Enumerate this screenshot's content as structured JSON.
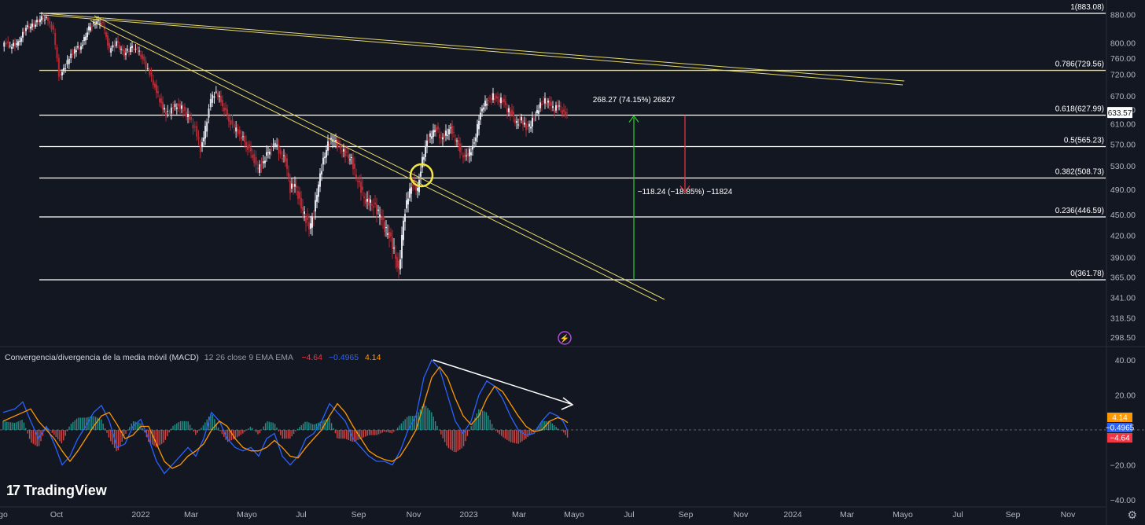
{
  "chart_data": [
    {
      "type": "candlestick",
      "yscale": "log",
      "ylim": [
        298.5,
        883.08
      ],
      "y_ticks": [
        "880.00",
        "800.00",
        "760.00",
        "720.00",
        "670.00",
        "640.00",
        "610.00",
        "570.00",
        "530.00",
        "490.00",
        "450.00",
        "420.00",
        "390.00",
        "365.00",
        "341.00",
        "318.50",
        "298.50"
      ],
      "x_ticks": [
        "go",
        "Oct",
        "2022",
        "Mar",
        "Mayo",
        "Jul",
        "Sep",
        "Nov",
        "2023",
        "Mar",
        "Mayo",
        "Jul",
        "Sep",
        "Nov",
        "2024",
        "Mar",
        "Mayo",
        "Jul",
        "Sep",
        "Nov"
      ],
      "last_price": "633.57",
      "fib_levels": [
        {
          "label": "1(883.08)",
          "value": 883.08,
          "color": "#ffffff"
        },
        {
          "label": "0.786(729.56)",
          "value": 729.56,
          "color": "#f5e642"
        },
        {
          "label": "0.618(627.99)",
          "value": 627.99,
          "color": "#ffffff"
        },
        {
          "label": "0.5(565.23)",
          "value": 565.23,
          "color": "#ffffff"
        },
        {
          "label": "0.382(508.73)",
          "value": 508.73,
          "color": "#ffffff"
        },
        {
          "label": "0.236(446.59)",
          "value": 446.59,
          "color": "#ffffff"
        },
        {
          "label": "0(361.78)",
          "value": 361.78,
          "color": "#ffffff"
        }
      ],
      "series": [
        {
          "name": "price",
          "points": [
            [
              0,
              790
            ],
            [
              5,
              800
            ],
            [
              10,
              790
            ],
            [
              20,
              800
            ],
            [
              30,
              840
            ],
            [
              40,
              850
            ],
            [
              50,
              870
            ],
            [
              58,
              865
            ],
            [
              65,
              830
            ],
            [
              72,
              720
            ],
            [
              78,
              730
            ],
            [
              85,
              760
            ],
            [
              92,
              780
            ],
            [
              100,
              790
            ],
            [
              110,
              840
            ],
            [
              120,
              860
            ],
            [
              128,
              850
            ],
            [
              136,
              780
            ],
            [
              145,
              800
            ],
            [
              155,
              770
            ],
            [
              165,
              790
            ],
            [
              172,
              780
            ],
            [
              178,
              760
            ],
            [
              185,
              730
            ],
            [
              192,
              700
            ],
            [
              200,
              660
            ],
            [
              208,
              630
            ],
            [
              215,
              640
            ],
            [
              222,
              650
            ],
            [
              230,
              640
            ],
            [
              238,
              620
            ],
            [
              245,
              600
            ],
            [
              252,
              560
            ],
            [
              258,
              600
            ],
            [
              265,
              660
            ],
            [
              272,
              680
            ],
            [
              280,
              650
            ],
            [
              288,
              620
            ],
            [
              295,
              600
            ],
            [
              302,
              590
            ],
            [
              310,
              570
            ],
            [
              318,
              550
            ],
            [
              325,
              520
            ],
            [
              332,
              540
            ],
            [
              340,
              560
            ],
            [
              347,
              570
            ],
            [
              354,
              550
            ],
            [
              360,
              540
            ],
            [
              366,
              490
            ],
            [
              372,
              500
            ],
            [
              378,
              470
            ],
            [
              384,
              450
            ],
            [
              390,
              430
            ],
            [
              396,
              450
            ],
            [
              402,
              500
            ],
            [
              408,
              540
            ],
            [
              414,
              570
            ],
            [
              420,
              580
            ],
            [
              426,
              570
            ],
            [
              432,
              560
            ],
            [
              438,
              550
            ],
            [
              444,
              540
            ],
            [
              450,
              510
            ],
            [
              456,
              490
            ],
            [
              462,
              470
            ],
            [
              468,
              470
            ],
            [
              474,
              460
            ],
            [
              480,
              450
            ],
            [
              486,
              430
            ],
            [
              492,
              420
            ],
            [
              498,
              400
            ],
            [
              504,
              370
            ],
            [
              510,
              440
            ],
            [
              516,
              480
            ],
            [
              522,
              500
            ],
            [
              528,
              490
            ],
            [
              534,
              540
            ],
            [
              540,
              575
            ],
            [
              546,
              590
            ],
            [
              552,
              600
            ],
            [
              558,
              580
            ],
            [
              564,
              590
            ],
            [
              570,
              600
            ],
            [
              576,
              580
            ],
            [
              582,
              560
            ],
            [
              588,
              545
            ],
            [
              594,
              555
            ],
            [
              600,
              570
            ],
            [
              606,
              620
            ],
            [
              612,
              650
            ],
            [
              618,
              660
            ],
            [
              624,
              670
            ],
            [
              630,
              660
            ],
            [
              636,
              660
            ],
            [
              642,
              640
            ],
            [
              648,
              630
            ],
            [
              654,
              610
            ],
            [
              660,
              620
            ],
            [
              666,
              600
            ],
            [
              672,
              610
            ],
            [
              678,
              630
            ],
            [
              684,
              650
            ],
            [
              690,
              660
            ],
            [
              696,
              650
            ],
            [
              702,
              640
            ],
            [
              708,
              650
            ],
            [
              714,
              630
            ],
            [
              718,
              633.57
            ]
          ]
        }
      ],
      "annotations": [
        {
          "text": "268.27 (74.15%) 26827",
          "color": "#2ad02a"
        },
        {
          "text": "−118.24 (−18.85%) −11824",
          "color": "#f23645"
        }
      ]
    },
    {
      "type": "macd",
      "title": "Convergencia/divergencia de la media móvil (MACD)",
      "params": "12 26 close 9 EMA EMA",
      "values": [
        "−4.64",
        "−0.4965",
        "4.14"
      ],
      "ylim": [
        -40,
        40
      ],
      "y_ticks": [
        "40.00",
        "20.00",
        "−20.00",
        "−40.00"
      ],
      "badges": [
        {
          "text": "4.14",
          "color": "#ff9800",
          "value": 4.14
        },
        {
          "text": "−0.4965",
          "color": "#2962ff",
          "value": -0.4965
        },
        {
          "text": "−4.64",
          "color": "#f23645",
          "value": -4.64
        }
      ],
      "series": [
        {
          "name": "MACD",
          "color": "#2962ff",
          "points": [
            [
              0,
              10
            ],
            [
              15,
              12
            ],
            [
              25,
              16
            ],
            [
              35,
              5
            ],
            [
              45,
              -5
            ],
            [
              55,
              2
            ],
            [
              65,
              -8
            ],
            [
              75,
              -20
            ],
            [
              85,
              -15
            ],
            [
              95,
              -5
            ],
            [
              105,
              2
            ],
            [
              115,
              10
            ],
            [
              125,
              14
            ],
            [
              135,
              5
            ],
            [
              145,
              -10
            ],
            [
              155,
              -8
            ],
            [
              165,
              2
            ],
            [
              175,
              6
            ],
            [
              185,
              -5
            ],
            [
              195,
              -18
            ],
            [
              205,
              -25
            ],
            [
              215,
              -20
            ],
            [
              225,
              -15
            ],
            [
              235,
              -10
            ],
            [
              245,
              -15
            ],
            [
              255,
              -5
            ],
            [
              265,
              10
            ],
            [
              275,
              5
            ],
            [
              285,
              -5
            ],
            [
              295,
              -10
            ],
            [
              305,
              -12
            ],
            [
              315,
              -10
            ],
            [
              325,
              -15
            ],
            [
              335,
              -5
            ],
            [
              345,
              -2
            ],
            [
              355,
              -15
            ],
            [
              365,
              -20
            ],
            [
              375,
              -15
            ],
            [
              385,
              -5
            ],
            [
              395,
              -2
            ],
            [
              405,
              5
            ],
            [
              415,
              15
            ],
            [
              425,
              10
            ],
            [
              435,
              5
            ],
            [
              445,
              -5
            ],
            [
              455,
              -10
            ],
            [
              465,
              -15
            ],
            [
              475,
              -18
            ],
            [
              485,
              -18
            ],
            [
              495,
              -20
            ],
            [
              505,
              -12
            ],
            [
              515,
              0
            ],
            [
              525,
              8
            ],
            [
              535,
              30
            ],
            [
              545,
              40
            ],
            [
              555,
              35
            ],
            [
              565,
              20
            ],
            [
              575,
              5
            ],
            [
              585,
              -2
            ],
            [
              595,
              5
            ],
            [
              605,
              20
            ],
            [
              615,
              28
            ],
            [
              625,
              25
            ],
            [
              635,
              18
            ],
            [
              645,
              8
            ],
            [
              655,
              0
            ],
            [
              665,
              -3
            ],
            [
              675,
              -2
            ],
            [
              685,
              5
            ],
            [
              695,
              10
            ],
            [
              705,
              8
            ],
            [
              712,
              5
            ],
            [
              718,
              -0.4965
            ]
          ]
        },
        {
          "name": "Signal",
          "color": "#ff9800",
          "points": [
            [
              0,
              5
            ],
            [
              15,
              8
            ],
            [
              25,
              10
            ],
            [
              35,
              12
            ],
            [
              45,
              5
            ],
            [
              55,
              0
            ],
            [
              65,
              -5
            ],
            [
              75,
              -12
            ],
            [
              85,
              -18
            ],
            [
              95,
              -12
            ],
            [
              105,
              -5
            ],
            [
              115,
              2
            ],
            [
              125,
              8
            ],
            [
              135,
              10
            ],
            [
              145,
              3
            ],
            [
              155,
              -5
            ],
            [
              165,
              -3
            ],
            [
              175,
              2
            ],
            [
              185,
              2
            ],
            [
              195,
              -8
            ],
            [
              205,
              -18
            ],
            [
              215,
              -22
            ],
            [
              225,
              -20
            ],
            [
              235,
              -15
            ],
            [
              245,
              -12
            ],
            [
              255,
              -8
            ],
            [
              265,
              0
            ],
            [
              275,
              5
            ],
            [
              285,
              2
            ],
            [
              295,
              -5
            ],
            [
              305,
              -10
            ],
            [
              315,
              -12
            ],
            [
              325,
              -12
            ],
            [
              335,
              -10
            ],
            [
              345,
              -6
            ],
            [
              355,
              -10
            ],
            [
              365,
              -15
            ],
            [
              375,
              -16
            ],
            [
              385,
              -10
            ],
            [
              395,
              -5
            ],
            [
              405,
              0
            ],
            [
              415,
              8
            ],
            [
              425,
              15
            ],
            [
              435,
              10
            ],
            [
              445,
              2
            ],
            [
              455,
              -5
            ],
            [
              465,
              -12
            ],
            [
              475,
              -15
            ],
            [
              485,
              -17
            ],
            [
              495,
              -18
            ],
            [
              505,
              -15
            ],
            [
              515,
              -8
            ],
            [
              525,
              0
            ],
            [
              535,
              15
            ],
            [
              545,
              30
            ],
            [
              555,
              36
            ],
            [
              565,
              30
            ],
            [
              575,
              18
            ],
            [
              585,
              8
            ],
            [
              595,
              3
            ],
            [
              605,
              8
            ],
            [
              615,
              18
            ],
            [
              625,
              25
            ],
            [
              635,
              22
            ],
            [
              645,
              15
            ],
            [
              655,
              8
            ],
            [
              665,
              2
            ],
            [
              675,
              -1
            ],
            [
              685,
              0
            ],
            [
              695,
              5
            ],
            [
              705,
              7
            ],
            [
              712,
              6
            ],
            [
              718,
              4.14
            ]
          ]
        }
      ],
      "histogram_color_pos": "#26a69a",
      "histogram_color_neg": "#ef5350"
    }
  ],
  "ui": {
    "macd_title": "Convergencia/divergencia de la media móvil (MACD)",
    "macd_params": "12 26 close 9 EMA EMA",
    "macd_v1": "−4.64",
    "macd_v2": "−0.4965",
    "macd_v3": "4.14",
    "brand": "TradingView",
    "lightning_icon": "lightning-icon",
    "settings_icon": "gear-icon"
  }
}
